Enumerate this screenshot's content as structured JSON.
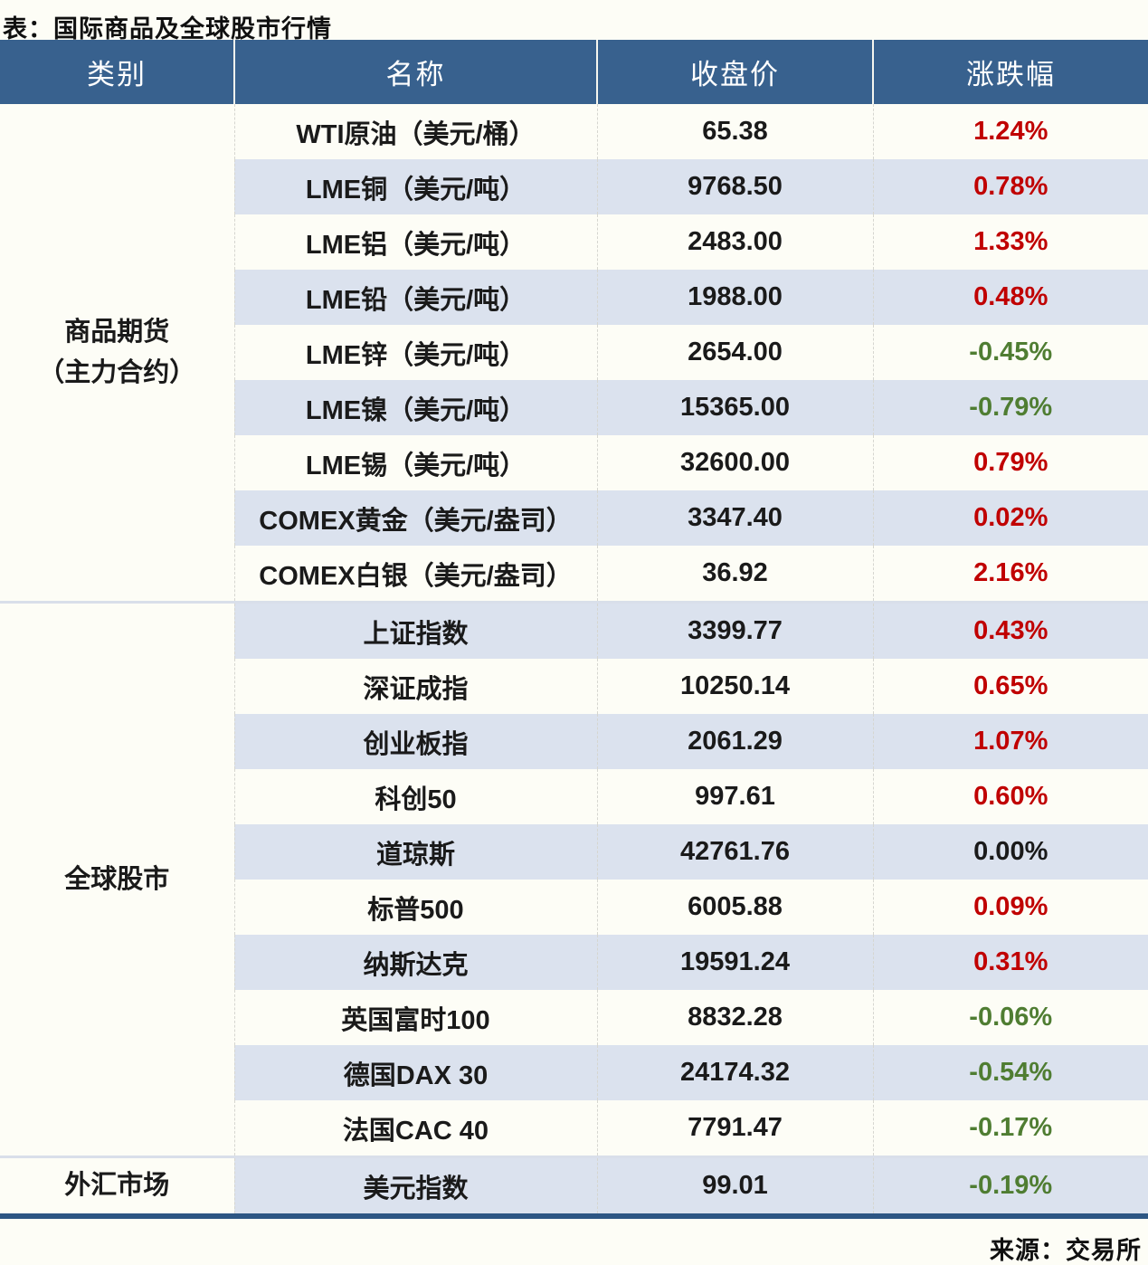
{
  "title": "表：国际商品及全球股市行情",
  "source": "来源：交易所",
  "colors": {
    "header_bg": "#38618e",
    "stripe_row_bg": "#dbe2ee",
    "up_red": "#c00000",
    "down_green": "#4f7d32",
    "flat_black": "#1a1a1a",
    "bottom_border": "#2d5684",
    "section_divider": "#d9dfea"
  },
  "chart_data": {
    "type": "table",
    "title": "国际商品及全球股市行情",
    "columns": [
      "类别",
      "名称",
      "收盘价",
      "涨跌幅"
    ],
    "sections": [
      {
        "category": "商品期货（主力合约）",
        "category_lines": [
          "商品期货",
          "（主力合约）"
        ],
        "rows": [
          {
            "name": "WTI原油（美元/桶）",
            "close": "65.38",
            "change": "1.24%",
            "dir": "up"
          },
          {
            "name": "LME铜（美元/吨）",
            "close": "9768.50",
            "change": "0.78%",
            "dir": "up"
          },
          {
            "name": "LME铝（美元/吨）",
            "close": "2483.00",
            "change": "1.33%",
            "dir": "up"
          },
          {
            "name": "LME铅（美元/吨）",
            "close": "1988.00",
            "change": "0.48%",
            "dir": "up"
          },
          {
            "name": "LME锌（美元/吨）",
            "close": "2654.00",
            "change": "-0.45%",
            "dir": "down"
          },
          {
            "name": "LME镍（美元/吨）",
            "close": "15365.00",
            "change": "-0.79%",
            "dir": "down"
          },
          {
            "name": "LME锡（美元/吨）",
            "close": "32600.00",
            "change": "0.79%",
            "dir": "up"
          },
          {
            "name": "COMEX黄金（美元/盎司）",
            "close": "3347.40",
            "change": "0.02%",
            "dir": "up"
          },
          {
            "name": "COMEX白银（美元/盎司）",
            "close": "36.92",
            "change": "2.16%",
            "dir": "up"
          }
        ]
      },
      {
        "category": "全球股市",
        "category_lines": [
          "全球股市"
        ],
        "rows": [
          {
            "name": "上证指数",
            "close": "3399.77",
            "change": "0.43%",
            "dir": "up"
          },
          {
            "name": "深证成指",
            "close": "10250.14",
            "change": "0.65%",
            "dir": "up"
          },
          {
            "name": "创业板指",
            "close": "2061.29",
            "change": "1.07%",
            "dir": "up"
          },
          {
            "name": "科创50",
            "close": "997.61",
            "change": "0.60%",
            "dir": "up"
          },
          {
            "name": "道琼斯",
            "close": "42761.76",
            "change": "0.00%",
            "dir": "flat"
          },
          {
            "name": "标普500",
            "close": "6005.88",
            "change": "0.09%",
            "dir": "up"
          },
          {
            "name": "纳斯达克",
            "close": "19591.24",
            "change": "0.31%",
            "dir": "up"
          },
          {
            "name": "英国富时100",
            "close": "8832.28",
            "change": "-0.06%",
            "dir": "down"
          },
          {
            "name": "德国DAX 30",
            "close": "24174.32",
            "change": "-0.54%",
            "dir": "down"
          },
          {
            "name": "法国CAC 40",
            "close": "7791.47",
            "change": "-0.17%",
            "dir": "down"
          }
        ]
      },
      {
        "category": "外汇市场",
        "category_lines": [
          "外汇市场"
        ],
        "rows": [
          {
            "name": "美元指数",
            "close": "99.01",
            "change": "-0.19%",
            "dir": "down"
          }
        ]
      }
    ]
  }
}
